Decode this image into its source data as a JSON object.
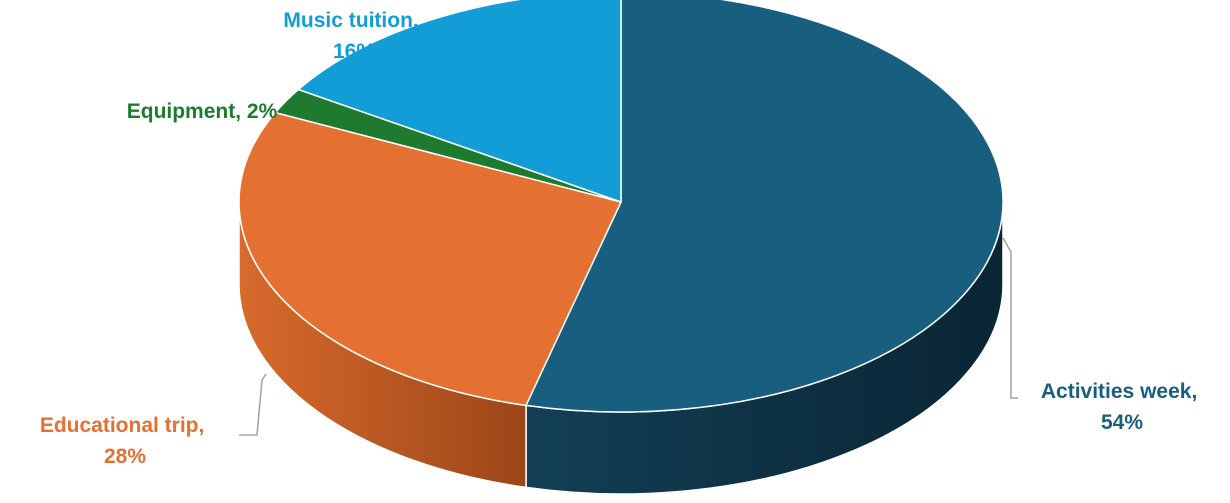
{
  "chart_data": {
    "type": "pie",
    "style": "3d",
    "title": "",
    "series": [
      {
        "name": "Activities week",
        "value": 54,
        "label_line1": "Activities week,",
        "label_line2": "54%",
        "color": "#185f7f",
        "side_color": "#0f3e54"
      },
      {
        "name": "Educational trip",
        "value": 28,
        "label_line1": "Educational trip,",
        "label_line2": "28%",
        "color": "#e47032",
        "side_color": "#b85520"
      },
      {
        "name": "Equipment",
        "value": 2,
        "label_line1": "Equipment, 2%",
        "label_line2": "",
        "color": "#1e7a2e",
        "side_color": "#145620"
      },
      {
        "name": "Music tuition",
        "value": 16,
        "label_line1": "Music tuition,",
        "label_line2": "16%",
        "color": "#139dd6",
        "side_color": "#0d78a6"
      }
    ],
    "legend": "none",
    "data_labels": "category name and percentage"
  }
}
